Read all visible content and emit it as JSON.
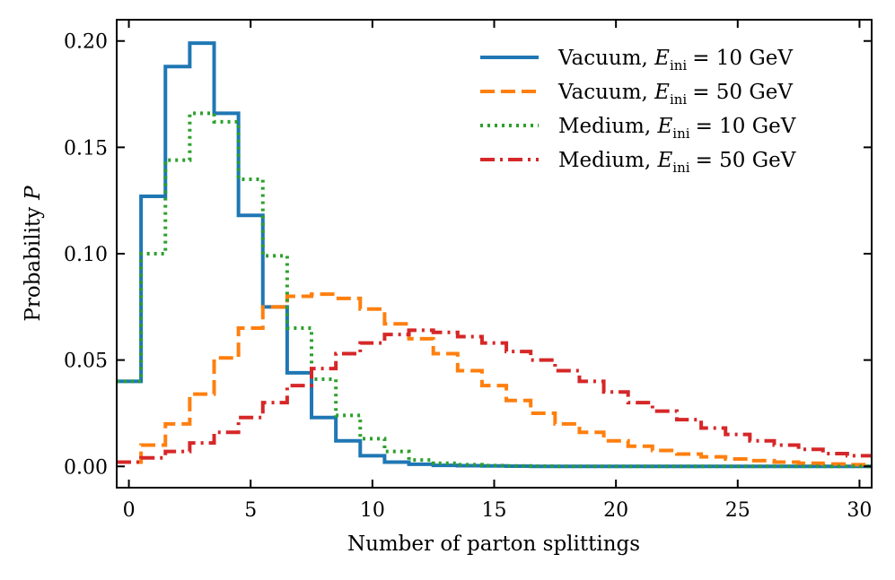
{
  "chart_data": {
    "type": "line",
    "style": "step-histogram",
    "title": "",
    "xlabel": "Number of parton splittings",
    "ylabel_text": "Probability",
    "ylabel_symbol": "P",
    "xlim": [
      -0.5,
      30.5
    ],
    "ylim": [
      -0.01,
      0.21
    ],
    "xticks": [
      0,
      5,
      10,
      15,
      20,
      25,
      30
    ],
    "xtick_labels": [
      "0",
      "5",
      "10",
      "15",
      "20",
      "25",
      "30"
    ],
    "yticks": [
      0.0,
      0.05,
      0.1,
      0.15,
      0.2
    ],
    "ytick_labels": [
      "0.00",
      "0.05",
      "0.10",
      "0.15",
      "0.20"
    ],
    "grid": false,
    "legend_position": "top-right",
    "x": [
      0,
      1,
      2,
      3,
      4,
      5,
      6,
      7,
      8,
      9,
      10,
      11,
      12,
      13,
      14,
      15,
      16,
      17,
      18,
      19,
      20,
      21,
      22,
      23,
      24,
      25,
      26,
      27,
      28,
      29,
      30
    ],
    "series": [
      {
        "name": "Vacuum, E_ini = 10 GeV",
        "legend_prefix": "Vacuum,",
        "legend_symbol": "E",
        "legend_sub": "ini",
        "legend_suffix": "= 10 GeV",
        "color": "#1f77b4",
        "linestyle": "solid",
        "values": [
          0.04,
          0.127,
          0.188,
          0.199,
          0.166,
          0.118,
          0.075,
          0.044,
          0.023,
          0.012,
          0.005,
          0.002,
          0.001,
          0.0005,
          0.0003,
          0.0002,
          0.0001,
          0,
          0,
          0,
          0,
          0,
          0,
          0,
          0,
          0,
          0,
          0,
          0,
          0,
          0
        ]
      },
      {
        "name": "Vacuum, E_ini = 50 GeV",
        "legend_prefix": "Vacuum,",
        "legend_symbol": "E",
        "legend_sub": "ini",
        "legend_suffix": "= 50 GeV",
        "color": "#ff7f0e",
        "linestyle": "dashed",
        "values": [
          0.002,
          0.01,
          0.02,
          0.034,
          0.051,
          0.065,
          0.075,
          0.08,
          0.081,
          0.079,
          0.074,
          0.067,
          0.06,
          0.053,
          0.045,
          0.038,
          0.031,
          0.025,
          0.02,
          0.016,
          0.012,
          0.0095,
          0.0075,
          0.0058,
          0.0045,
          0.0035,
          0.0027,
          0.002,
          0.0015,
          0.0011,
          0.0008
        ]
      },
      {
        "name": "Medium, E_ini = 10 GeV",
        "legend_prefix": "Medium,",
        "legend_symbol": "E",
        "legend_sub": "ini",
        "legend_suffix": "= 10 GeV",
        "color": "#2ca02c",
        "linestyle": "dotted",
        "values": [
          0.04,
          0.1,
          0.144,
          0.166,
          0.162,
          0.135,
          0.099,
          0.065,
          0.041,
          0.024,
          0.013,
          0.007,
          0.003,
          0.0015,
          0.0008,
          0.0004,
          0.0002,
          0.0001,
          0,
          0,
          0,
          0,
          0,
          0,
          0,
          0,
          0,
          0,
          0,
          0,
          0
        ]
      },
      {
        "name": "Medium, E_ini = 50 GeV",
        "legend_prefix": "Medium,",
        "legend_symbol": "E",
        "legend_sub": "ini",
        "legend_suffix": "= 50 GeV",
        "color": "#d62728",
        "linestyle": "dashdot",
        "values": [
          0.002,
          0.004,
          0.007,
          0.011,
          0.016,
          0.023,
          0.03,
          0.038,
          0.046,
          0.053,
          0.058,
          0.062,
          0.064,
          0.063,
          0.061,
          0.058,
          0.054,
          0.05,
          0.045,
          0.04,
          0.035,
          0.03,
          0.026,
          0.022,
          0.018,
          0.015,
          0.012,
          0.01,
          0.008,
          0.006,
          0.005
        ]
      }
    ]
  }
}
